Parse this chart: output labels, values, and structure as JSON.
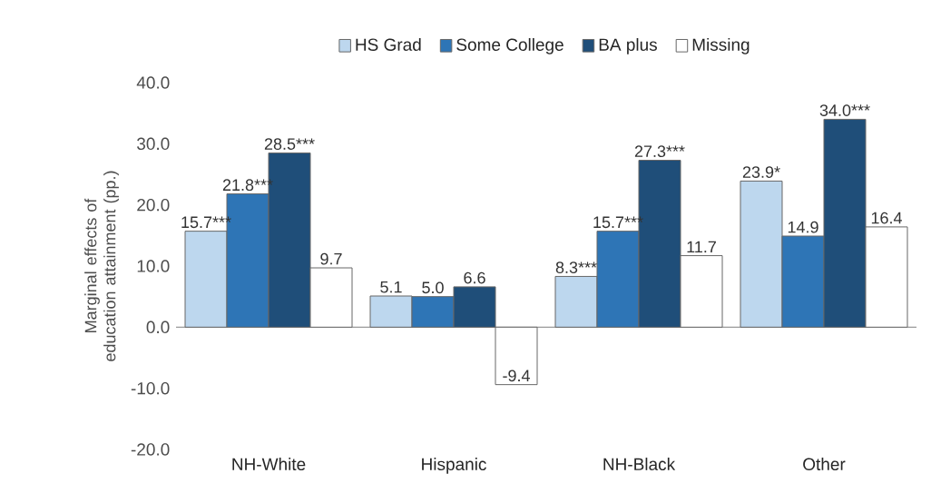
{
  "chart_data": {
    "type": "bar",
    "ylabel": "Marginal effects of education attainment (pp.)",
    "categories": [
      "NH-White",
      "Hispanic",
      "NH-Black",
      "Other"
    ],
    "series": [
      {
        "name": "HS Grad",
        "color": "#bdd7ee",
        "values": [
          15.7,
          5.1,
          8.3,
          23.9
        ],
        "value_labels": [
          "15.7***",
          "5.1",
          "8.3***",
          "23.9*"
        ]
      },
      {
        "name": "Some College",
        "color": "#2e75b6",
        "values": [
          21.8,
          5.0,
          15.7,
          14.9
        ],
        "value_labels": [
          "21.8***",
          "5.0",
          "15.7***",
          "14.9"
        ]
      },
      {
        "name": "BA plus",
        "color": "#1f4e79",
        "values": [
          28.5,
          6.6,
          27.3,
          34.0
        ],
        "value_labels": [
          "28.5***",
          "6.6",
          "27.3***",
          "34.0***"
        ]
      },
      {
        "name": "Missing",
        "color": "#ffffff",
        "values": [
          9.7,
          -9.4,
          11.7,
          16.4
        ],
        "value_labels": [
          "9.7",
          "-9.4",
          "11.7",
          "16.4"
        ]
      }
    ],
    "ylim": [
      -20,
      40
    ],
    "yticks": [
      {
        "value": -20,
        "label": "-20.0"
      },
      {
        "value": -10,
        "label": "-10.0"
      },
      {
        "value": 0,
        "label": "0.0"
      },
      {
        "value": 10,
        "label": "10.0"
      },
      {
        "value": 20,
        "label": "20.0"
      },
      {
        "value": 30,
        "label": "30.0"
      },
      {
        "value": 40,
        "label": "40.0"
      }
    ],
    "legend": "top"
  }
}
